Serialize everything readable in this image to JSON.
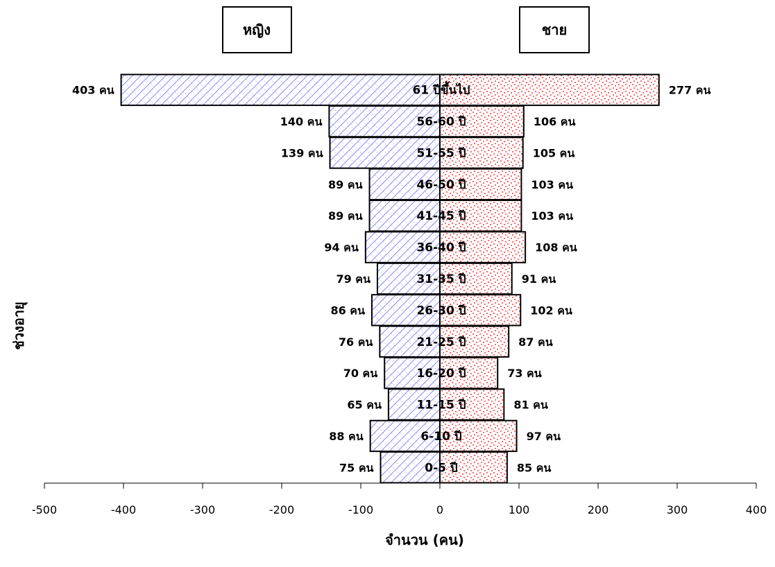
{
  "chart_data": {
    "type": "bar",
    "orientation": "horizontal",
    "layout": "population-pyramid",
    "xlabel": "จำนวน (คน)",
    "ylabel": "ช่วงอายุ",
    "xlim": [
      -500,
      400
    ],
    "xticks": [
      -500,
      -400,
      -300,
      -200,
      -100,
      0,
      100,
      200,
      300,
      400
    ],
    "grid": false,
    "categories": [
      "0-5 ปี",
      "6-10 ปี",
      "11-15 ปี",
      "16-20 ปี",
      "21-25 ปี",
      "26-30 ปี",
      "31-35 ปี",
      "36-40 ปี",
      "41-45 ปี",
      "46-50 ปี",
      "51-55 ปี",
      "56-60 ปี",
      "61 ปีขึ้นไป"
    ],
    "series": [
      {
        "name": "หญิง",
        "side": "left",
        "color": "#8c8cff",
        "values": [
          75,
          88,
          65,
          70,
          76,
          86,
          79,
          94,
          89,
          89,
          139,
          140,
          403
        ],
        "labels": [
          "75 คน",
          "88 คน",
          "65 คน",
          "70 คน",
          "76 คน",
          "86 คน",
          "79 คน",
          "94 คน",
          "89 คน",
          "89 คน",
          "139 คน",
          "140 คน",
          "403 คน"
        ]
      },
      {
        "name": "ชาย",
        "side": "right",
        "color": "#ff0000",
        "values": [
          85,
          97,
          81,
          73,
          87,
          102,
          91,
          108,
          103,
          103,
          105,
          106,
          277
        ],
        "labels": [
          "85 คน",
          "97 คน",
          "81 คน",
          "73 คน",
          "87 คน",
          "102 คน",
          "91 คน",
          "108 คน",
          "103 คน",
          "103 คน",
          "105 คน",
          "106 คน",
          "277 คน"
        ]
      }
    ]
  }
}
